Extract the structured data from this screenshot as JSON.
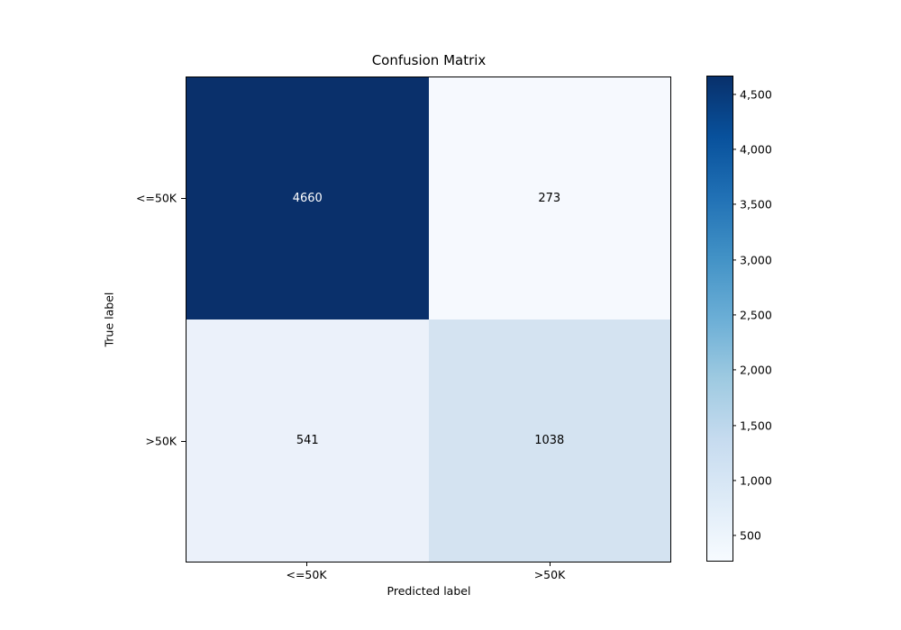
{
  "figure": {
    "background": "#ffffff"
  },
  "chart_data": {
    "type": "heatmap",
    "title": "Confusion Matrix",
    "xlabel": "Predicted label",
    "ylabel": "True label",
    "x_categories": [
      "<=50K",
      ">50K"
    ],
    "y_categories": [
      "<=50K",
      ">50K"
    ],
    "matrix": [
      [
        4660,
        273
      ],
      [
        541,
        1038
      ]
    ],
    "colormap": "Blues",
    "vmin": 273,
    "vmax": 4660,
    "colorbar_tick_values": [
      500,
      1000,
      1500,
      2000,
      2500,
      3000,
      3500,
      4000,
      4500
    ],
    "colorbar_tick_labels": [
      "500",
      "1,000",
      "1,500",
      "2,000",
      "2,500",
      "3,000",
      "3,500",
      "4,000",
      "4,500"
    ],
    "colorbar_position": "right",
    "grid": false,
    "cell_colors": [
      [
        "#0a306b",
        "#f6f9fe"
      ],
      [
        "#ebf1fa",
        "#d4e3f1"
      ]
    ],
    "cell_text_colors": [
      [
        "#ffffff",
        "#000000"
      ],
      [
        "#000000",
        "#000000"
      ]
    ],
    "accent_dark_blue": "#08306b",
    "accent_light_blue": "#f7fbff"
  }
}
